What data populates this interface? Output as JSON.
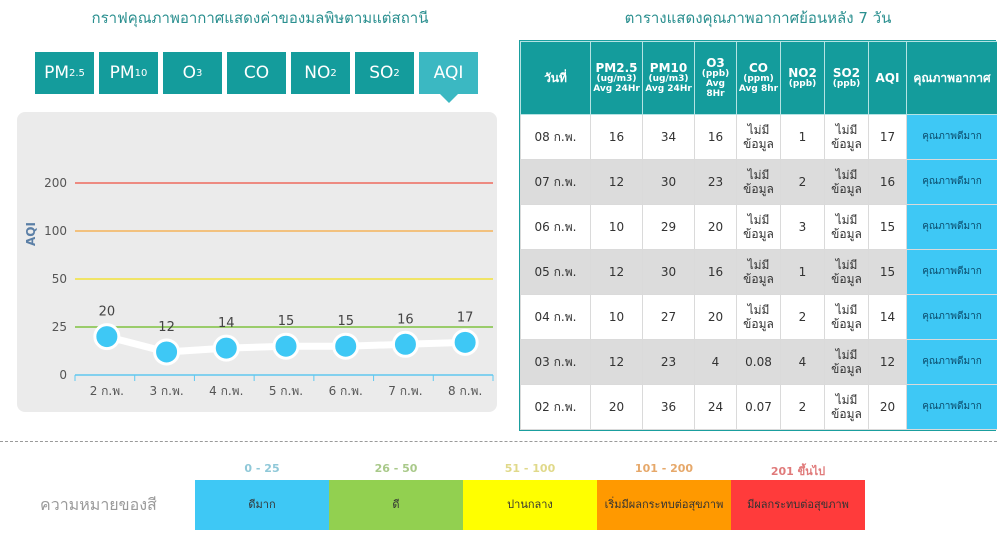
{
  "chart_title": "กราฟคุณภาพอากาศแสดงค่าของมลพิษตามแต่สถานี",
  "table_title": "ตารางแสดงคุณภาพอากาศย้อนหลัง 7 วัน",
  "tabs": [
    {
      "base": "PM",
      "sub": "2.5",
      "active": false
    },
    {
      "base": "PM",
      "sub": "10",
      "active": false
    },
    {
      "base": "O",
      "sub": "3",
      "active": false
    },
    {
      "base": "CO",
      "sub": "",
      "active": false
    },
    {
      "base": "NO",
      "sub": "2",
      "active": false
    },
    {
      "base": "SO",
      "sub": "2",
      "active": false
    },
    {
      "base": "AQI",
      "sub": "",
      "active": true
    }
  ],
  "chart_data": {
    "type": "line",
    "ylabel": "AQI",
    "categories": [
      "2 ก.พ.",
      "3 ก.พ.",
      "4 ก.พ.",
      "5 ก.พ.",
      "6 ก.พ.",
      "7 ก.พ.",
      "8 ก.พ."
    ],
    "values": [
      20,
      12,
      14,
      15,
      15,
      16,
      17
    ],
    "y_ticks": [
      0,
      25,
      50,
      100,
      200
    ],
    "reference_lines": [
      {
        "value": 25,
        "color": "#7fc241"
      },
      {
        "value": 50,
        "color": "#f2e23a"
      },
      {
        "value": 100,
        "color": "#f5b35a"
      },
      {
        "value": 200,
        "color": "#ee6a5e"
      }
    ],
    "line_color": "#ffffff",
    "point_color": "#3ec8f5",
    "axis_color": "#5fc8f0",
    "grid": false,
    "legend": "none"
  },
  "table": {
    "headers": [
      {
        "main": "วันที่",
        "sub": ""
      },
      {
        "main": "PM2.5",
        "sub": "(ug/m3) Avg 24Hr"
      },
      {
        "main": "PM10",
        "sub": "(ug/m3) Avg 24Hr"
      },
      {
        "main": "O3",
        "sub": "(ppb) Avg 8Hr"
      },
      {
        "main": "CO",
        "sub": "(ppm) Avg 8hr"
      },
      {
        "main": "NO2",
        "sub": "(ppb)"
      },
      {
        "main": "SO2",
        "sub": "(ppb)"
      },
      {
        "main": "AQI",
        "sub": ""
      },
      {
        "main": "คุณภาพอากาศ",
        "sub": ""
      }
    ],
    "rows": [
      [
        "08 ก.พ.",
        "16",
        "34",
        "16",
        "ไม่มีข้อมูล",
        "1",
        "ไม่มีข้อมูล",
        "17",
        "คุณภาพดีมาก"
      ],
      [
        "07 ก.พ.",
        "12",
        "30",
        "23",
        "ไม่มีข้อมูล",
        "2",
        "ไม่มีข้อมูล",
        "16",
        "คุณภาพดีมาก"
      ],
      [
        "06 ก.พ.",
        "10",
        "29",
        "20",
        "ไม่มีข้อมูล",
        "3",
        "ไม่มีข้อมูล",
        "15",
        "คุณภาพดีมาก"
      ],
      [
        "05 ก.พ.",
        "12",
        "30",
        "16",
        "ไม่มีข้อมูล",
        "1",
        "ไม่มีข้อมูล",
        "15",
        "คุณภาพดีมาก"
      ],
      [
        "04 ก.พ.",
        "10",
        "27",
        "20",
        "ไม่มีข้อมูล",
        "2",
        "ไม่มีข้อมูล",
        "14",
        "คุณภาพดีมาก"
      ],
      [
        "03 ก.พ.",
        "12",
        "23",
        "4",
        "0.08",
        "4",
        "ไม่มีข้อมูล",
        "12",
        "คุณภาพดีมาก"
      ],
      [
        "02 ก.พ.",
        "20",
        "36",
        "24",
        "0.07",
        "2",
        "ไม่มีข้อมูล",
        "20",
        "คุณภาพดีมาก"
      ]
    ],
    "quality_color": "#3ec8f5"
  },
  "legend": {
    "title": "ความหมายของสี",
    "items": [
      {
        "range": "0 - 25",
        "label": "ดีมาก",
        "color": "#3ec8f5",
        "range_color": "#8fc8d8"
      },
      {
        "range": "26 - 50",
        "label": "ดี",
        "color": "#92d050",
        "range_color": "#a9c98a"
      },
      {
        "range": "51 - 100",
        "label": "ปานกลาง",
        "color": "#ffff00",
        "range_color": "#e0d98a"
      },
      {
        "range": "101 - 200",
        "label": "เริ่มมีผลกระทบต่อสุขภาพ",
        "color": "#ff9900",
        "range_color": "#e6a86a"
      },
      {
        "range": "201 ขึ้นไป",
        "label": "มีผลกระทบต่อสุขภาพ",
        "color": "#ff3b3b",
        "range_color": "#e07a7a"
      }
    ]
  }
}
